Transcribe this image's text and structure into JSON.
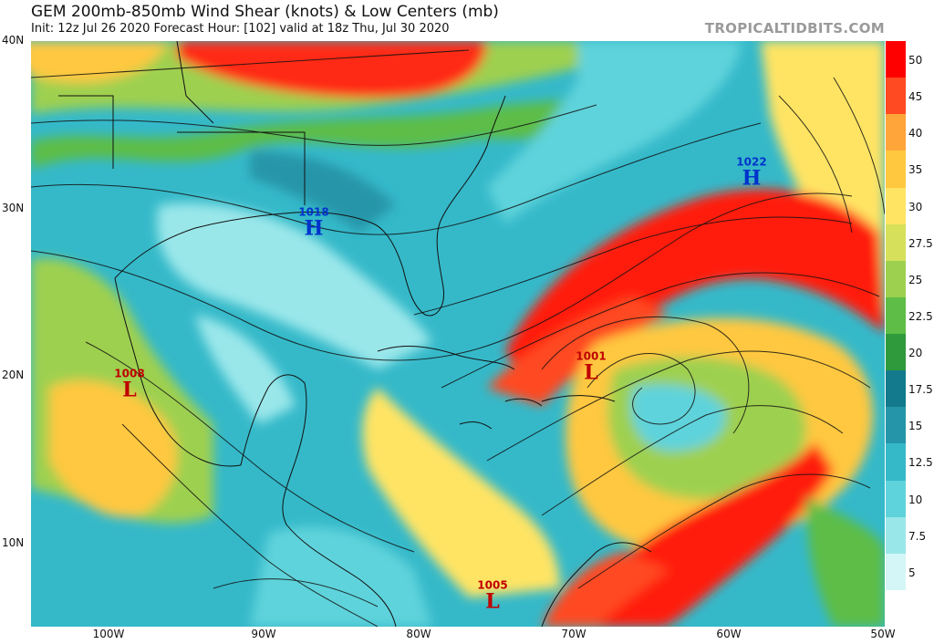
{
  "header": {
    "title": "GEM 200mb-850mb Wind Shear (knots) & Low Centers (mb)",
    "subtitle": "Init: 12z Jul 26 2020   Forecast Hour: [102]   valid at 18z Thu, Jul 30 2020",
    "brand": "TROPICALTIDBITS.COM"
  },
  "axes": {
    "lat_labels": [
      "40N",
      "30N",
      "20N",
      "10N"
    ],
    "lon_labels": [
      "100W",
      "90W",
      "80W",
      "70W",
      "60W",
      "50W"
    ]
  },
  "colorbar": {
    "labels": [
      "50",
      "45",
      "40",
      "35",
      "30",
      "27.5",
      "25",
      "22.5",
      "20",
      "17.5",
      "15",
      "12.5",
      "10",
      "7.5",
      "5"
    ],
    "colors": [
      "#ff0000",
      "#ff4a22",
      "#ffa53a",
      "#ffc83f",
      "#ffe463",
      "#d6e05a",
      "#9ed04f",
      "#5dbd46",
      "#2e9a3c",
      "#127a8c",
      "#2595a9",
      "#35b9c9",
      "#5ed3db",
      "#9ae7ea",
      "#d4f6f6",
      "#ffffff"
    ]
  },
  "pressure_centers": [
    {
      "type": "L",
      "pressure": "1008",
      "lon": -98.6,
      "lat": 20.5
    },
    {
      "type": "L",
      "pressure": "1001",
      "lon": -68.8,
      "lat": 20.9
    },
    {
      "type": "L",
      "pressure": "1005",
      "lon": -75.6,
      "lat": 6.5
    },
    {
      "type": "H",
      "pressure": "1018",
      "lon": -87.1,
      "lat": 28.8
    },
    {
      "type": "H",
      "pressure": "1022",
      "lon": -59.8,
      "lat": 32.3
    }
  ]
}
